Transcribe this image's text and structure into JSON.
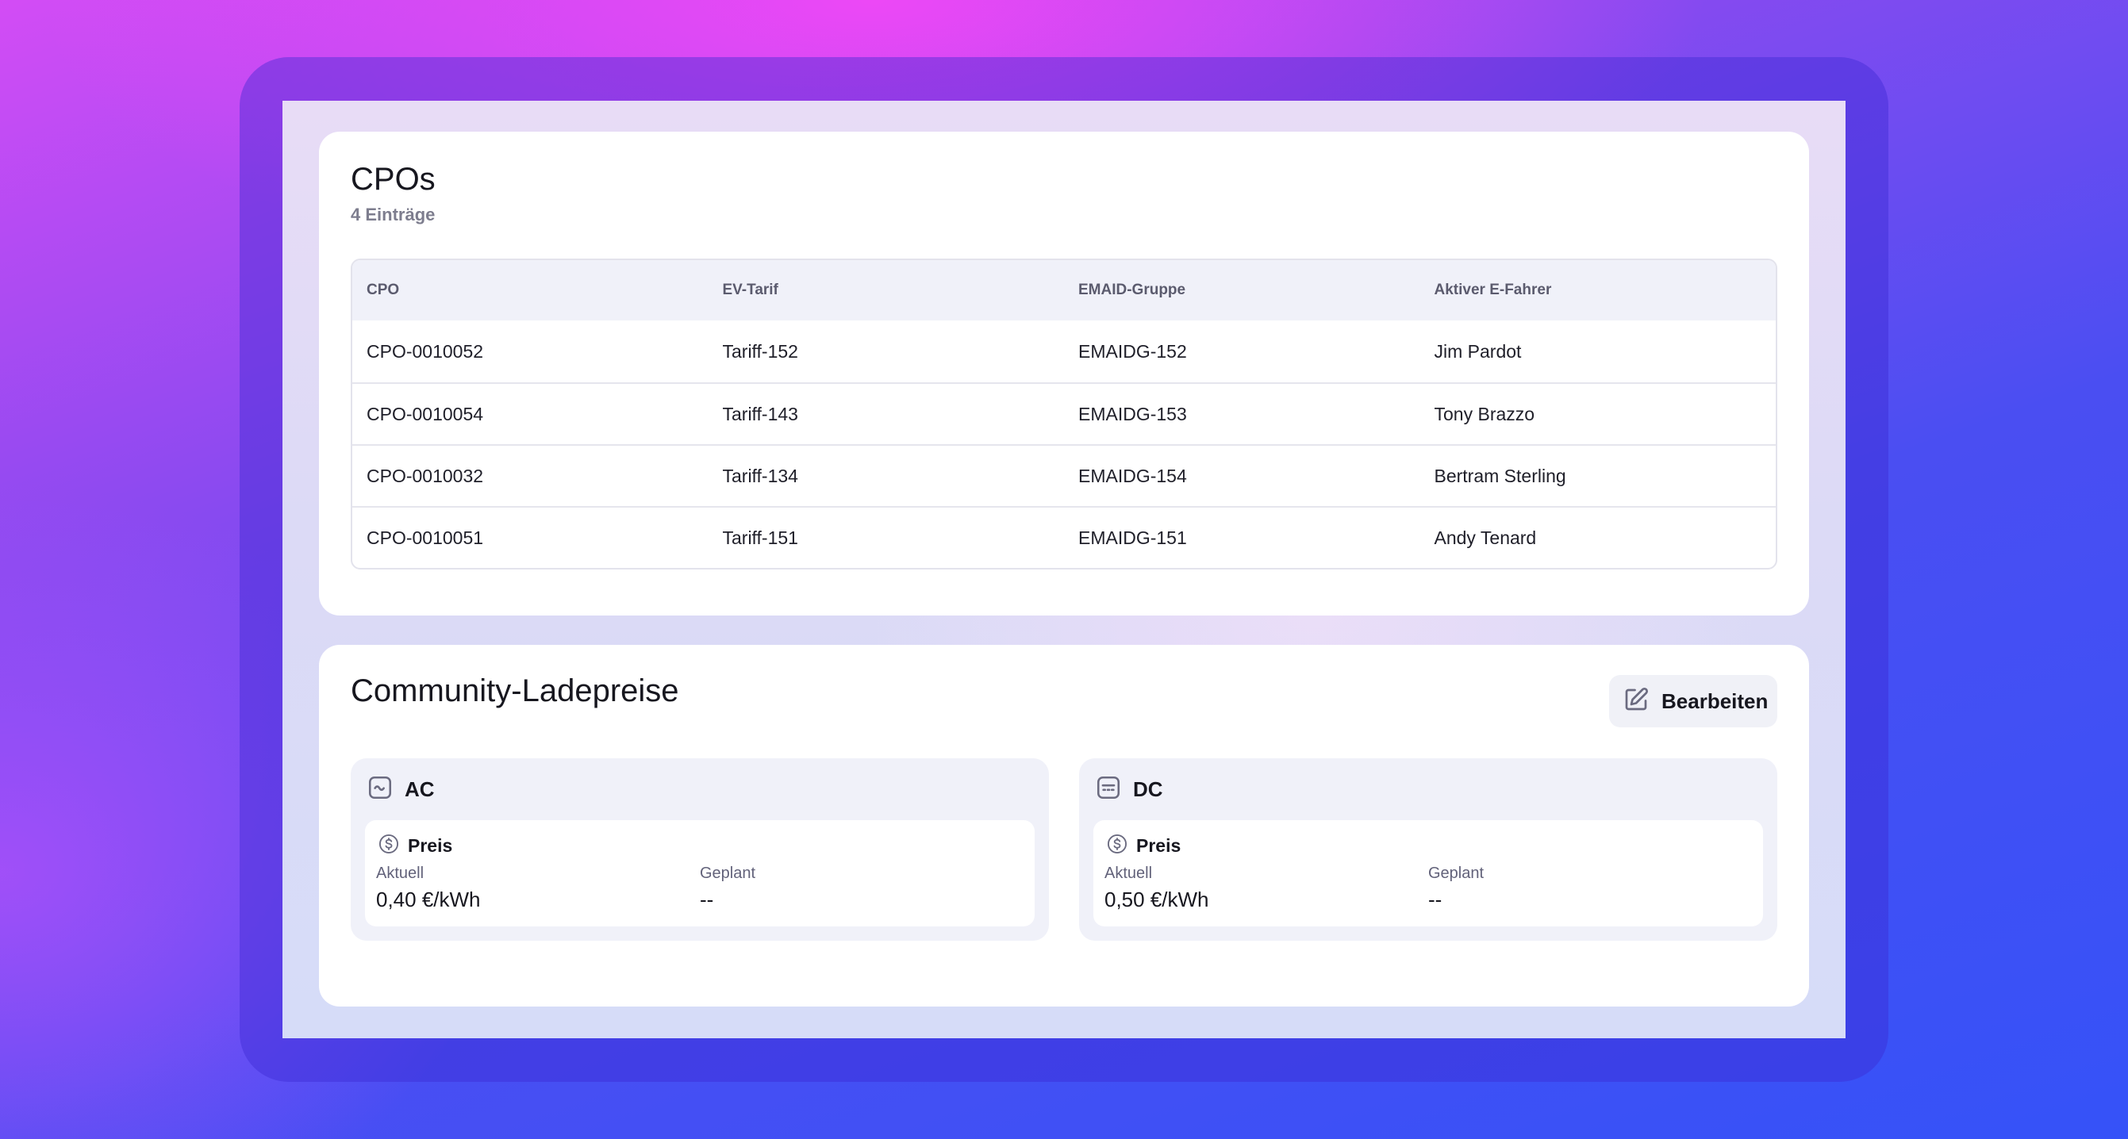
{
  "cpos": {
    "title": "CPOs",
    "count": "4 Einträge",
    "columns": [
      "CPO",
      "EV-Tarif",
      "EMAID-Gruppe",
      "Aktiver E-Fahrer"
    ],
    "rows": [
      [
        "CPO-0010052",
        "Tariff-152",
        "EMAIDG-152",
        "Jim Pardot"
      ],
      [
        "CPO-0010054",
        "Tariff-143",
        "EMAIDG-153",
        "Tony Brazzo"
      ],
      [
        "CPO-0010032",
        "Tariff-134",
        "EMAIDG-154",
        "Bertram Sterling"
      ],
      [
        "CPO-0010051",
        "Tariff-151",
        "EMAIDG-151",
        "Andy Tenard"
      ]
    ]
  },
  "community": {
    "title": "Community-Ladepreise",
    "edit_label": "Bearbeiten",
    "panels": [
      {
        "name": "AC",
        "icon": "ac-wave-icon",
        "price_label": "Preis",
        "current_label": "Aktuell",
        "current_value": "0,40 €/kWh",
        "planned_label": "Geplant",
        "planned_value": "--"
      },
      {
        "name": "DC",
        "icon": "dc-icon",
        "price_label": "Preis",
        "current_label": "Aktuell",
        "current_value": "0,50 €/kWh",
        "planned_label": "Geplant",
        "planned_value": "--"
      }
    ]
  },
  "colors": {
    "text": "#17171f",
    "muted": "#7d7d8e",
    "table_header_bg": "#f0f1f9",
    "icon_gray": "#6b6b80"
  }
}
